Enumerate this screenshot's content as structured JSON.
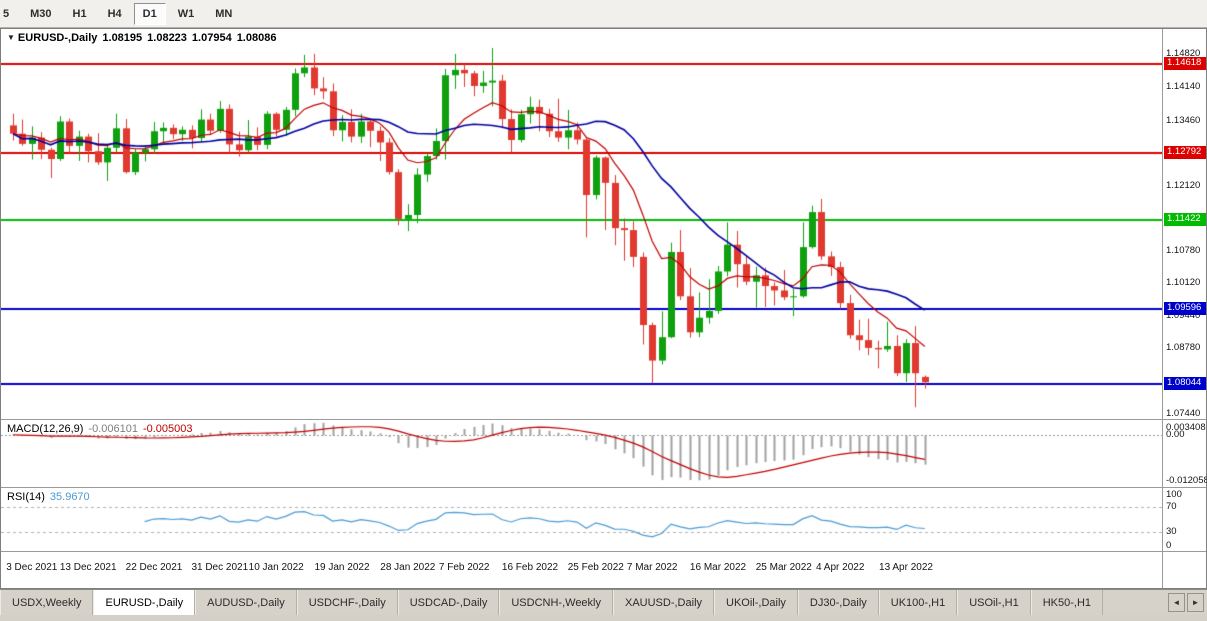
{
  "toolbar": {
    "timeframes": [
      "5",
      "M30",
      "H1",
      "H4",
      "D1",
      "W1",
      "MN"
    ],
    "active": "D1"
  },
  "icons": {
    "dropdown": "▼",
    "scroll_left": "◄",
    "scroll_right": "►"
  },
  "chart_data": {
    "type": "candlestick",
    "symbol_title": "EURUSD-,Daily",
    "ohlc_current": {
      "open": "1.08195",
      "high": "1.08223",
      "low": "1.07954",
      "close": "1.08086"
    },
    "ylim": [
      1.0733,
      1.1534
    ],
    "up_color": "#0fa00f",
    "down_color": "#e03a30",
    "price_ticks": [
      "1.14820",
      "1.14140",
      "1.13460",
      "1.12120",
      "1.10780",
      "1.10120",
      "1.09440",
      "1.08780",
      "1.07440"
    ],
    "levels": [
      {
        "price": 1.14618,
        "label": "1.14618",
        "color": "#dd0000"
      },
      {
        "price": 1.12792,
        "label": "1.12792",
        "color": "#dd0000"
      },
      {
        "price": 1.11422,
        "label": "1.11422",
        "color": "#00bb00"
      },
      {
        "price": 1.09596,
        "label": "1.09596",
        "color": "#0000cc"
      },
      {
        "price": 1.08044,
        "label": "1.08044",
        "color": "#0000cc"
      }
    ],
    "moving_averages": [
      {
        "name": "fast-ma",
        "period": 10,
        "method": "ema",
        "color": "#c00000",
        "width": 1.2
      },
      {
        "name": "slow-ma",
        "period": 20,
        "method": "sma",
        "color": "#0000a0",
        "width": 1.6
      }
    ],
    "x_labels": [
      {
        "label": "3 Dec 2021",
        "index": 2
      },
      {
        "label": "13 Dec 2021",
        "index": 8
      },
      {
        "label": "22 Dec 2021",
        "index": 15
      },
      {
        "label": "31 Dec 2021",
        "index": 22
      },
      {
        "label": "10 Jan 2022",
        "index": 28
      },
      {
        "label": "19 Jan 2022",
        "index": 35
      },
      {
        "label": "28 Jan 2022",
        "index": 42
      },
      {
        "label": "7 Feb 2022",
        "index": 48
      },
      {
        "label": "16 Feb 2022",
        "index": 55
      },
      {
        "label": "25 Feb 2022",
        "index": 62
      },
      {
        "label": "7 Mar 2022",
        "index": 68
      },
      {
        "label": "16 Mar 2022",
        "index": 75
      },
      {
        "label": "25 Mar 2022",
        "index": 82
      },
      {
        "label": "4 Apr 2022",
        "index": 88
      },
      {
        "label": "13 Apr 2022",
        "index": 95
      }
    ],
    "candles": [
      [
        1.1336,
        1.136,
        1.1305,
        1.1319
      ],
      [
        1.1319,
        1.1348,
        1.1294,
        1.1298
      ],
      [
        1.1298,
        1.1334,
        1.1266,
        1.1311
      ],
      [
        1.1311,
        1.1322,
        1.1267,
        1.1286
      ],
      [
        1.1286,
        1.129,
        1.1228,
        1.1267
      ],
      [
        1.1267,
        1.1355,
        1.1263,
        1.1344
      ],
      [
        1.1344,
        1.135,
        1.1279,
        1.1294
      ],
      [
        1.1294,
        1.1325,
        1.1263,
        1.1313
      ],
      [
        1.1313,
        1.1319,
        1.126,
        1.1283
      ],
      [
        1.1283,
        1.132,
        1.1255,
        1.126
      ],
      [
        1.126,
        1.1297,
        1.1222,
        1.129
      ],
      [
        1.129,
        1.136,
        1.128,
        1.133
      ],
      [
        1.133,
        1.1349,
        1.1237,
        1.124
      ],
      [
        1.124,
        1.1288,
        1.1234,
        1.128
      ],
      [
        1.128,
        1.1295,
        1.1262,
        1.1287
      ],
      [
        1.1287,
        1.1343,
        1.1278,
        1.1324
      ],
      [
        1.1324,
        1.1342,
        1.13,
        1.1331
      ],
      [
        1.1331,
        1.1338,
        1.1308,
        1.1318
      ],
      [
        1.1318,
        1.1334,
        1.1304,
        1.1327
      ],
      [
        1.1327,
        1.1336,
        1.1289,
        1.131
      ],
      [
        1.131,
        1.1369,
        1.1302,
        1.1348
      ],
      [
        1.1348,
        1.136,
        1.1316,
        1.1325
      ],
      [
        1.1325,
        1.1386,
        1.1321,
        1.137
      ],
      [
        1.137,
        1.1379,
        1.1279,
        1.1297
      ],
      [
        1.1297,
        1.1323,
        1.1272,
        1.1285
      ],
      [
        1.1285,
        1.1347,
        1.128,
        1.1313
      ],
      [
        1.1313,
        1.1332,
        1.1285,
        1.1296
      ],
      [
        1.1296,
        1.1365,
        1.1287,
        1.136
      ],
      [
        1.136,
        1.1363,
        1.1313,
        1.1327
      ],
      [
        1.1327,
        1.1374,
        1.1314,
        1.1368
      ],
      [
        1.1368,
        1.1453,
        1.1355,
        1.1443
      ],
      [
        1.1443,
        1.1481,
        1.1435,
        1.1455
      ],
      [
        1.1455,
        1.1483,
        1.1398,
        1.1412
      ],
      [
        1.1412,
        1.1435,
        1.139,
        1.1406
      ],
      [
        1.1406,
        1.1422,
        1.1314,
        1.1326
      ],
      [
        1.1326,
        1.1357,
        1.1303,
        1.1343
      ],
      [
        1.1343,
        1.1369,
        1.1301,
        1.1313
      ],
      [
        1.1313,
        1.136,
        1.13,
        1.1344
      ],
      [
        1.1344,
        1.1349,
        1.1291,
        1.1325
      ],
      [
        1.1325,
        1.1334,
        1.1263,
        1.1301
      ],
      [
        1.1301,
        1.131,
        1.1235,
        1.124
      ],
      [
        1.124,
        1.1246,
        1.1131,
        1.1144
      ],
      [
        1.1144,
        1.1174,
        1.1119,
        1.1152
      ],
      [
        1.1152,
        1.1248,
        1.1135,
        1.1235
      ],
      [
        1.1235,
        1.1279,
        1.122,
        1.1273
      ],
      [
        1.1273,
        1.133,
        1.1266,
        1.1304
      ],
      [
        1.1304,
        1.1452,
        1.1266,
        1.1439
      ],
      [
        1.1439,
        1.1483,
        1.1411,
        1.145
      ],
      [
        1.145,
        1.1462,
        1.1415,
        1.1443
      ],
      [
        1.1443,
        1.1448,
        1.1396,
        1.1417
      ],
      [
        1.1417,
        1.1448,
        1.1403,
        1.1424
      ],
      [
        1.1424,
        1.1495,
        1.1375,
        1.1428
      ],
      [
        1.1428,
        1.144,
        1.133,
        1.1349
      ],
      [
        1.1349,
        1.1369,
        1.128,
        1.1306
      ],
      [
        1.1306,
        1.1368,
        1.1301,
        1.1359
      ],
      [
        1.1359,
        1.1395,
        1.134,
        1.1374
      ],
      [
        1.1374,
        1.1389,
        1.1324,
        1.136
      ],
      [
        1.136,
        1.137,
        1.1312,
        1.1324
      ],
      [
        1.1324,
        1.1391,
        1.1302,
        1.1311
      ],
      [
        1.1311,
        1.1368,
        1.1287,
        1.1326
      ],
      [
        1.1326,
        1.1342,
        1.1297,
        1.1307
      ],
      [
        1.1307,
        1.131,
        1.1106,
        1.1193
      ],
      [
        1.1193,
        1.1274,
        1.1184,
        1.127
      ],
      [
        1.127,
        1.1272,
        1.1121,
        1.1218
      ],
      [
        1.1218,
        1.1234,
        1.109,
        1.1125
      ],
      [
        1.1125,
        1.1145,
        1.1058,
        1.1121
      ],
      [
        1.1121,
        1.1139,
        1.1045,
        1.1066
      ],
      [
        1.1066,
        1.1075,
        1.0886,
        1.0926
      ],
      [
        1.0926,
        1.0931,
        1.0806,
        1.0853
      ],
      [
        1.0853,
        1.0954,
        1.0845,
        1.0901
      ],
      [
        1.0901,
        1.1095,
        1.0899,
        1.1076
      ],
      [
        1.1076,
        1.1121,
        1.0977,
        1.0985
      ],
      [
        1.0985,
        1.1043,
        1.09,
        1.0911
      ],
      [
        1.0911,
        1.0993,
        1.0901,
        1.0941
      ],
      [
        1.0941,
        1.102,
        1.0929,
        1.0955
      ],
      [
        1.0955,
        1.1047,
        1.0949,
        1.1036
      ],
      [
        1.1036,
        1.1137,
        1.1026,
        1.1091
      ],
      [
        1.1091,
        1.1119,
        1.1003,
        1.1051
      ],
      [
        1.1051,
        1.1069,
        1.1008,
        1.1015
      ],
      [
        1.1015,
        1.1046,
        1.0962,
        1.1028
      ],
      [
        1.1028,
        1.1044,
        1.0963,
        1.1006
      ],
      [
        1.1006,
        1.1014,
        1.0966,
        1.0997
      ],
      [
        1.0997,
        1.1039,
        1.0977,
        1.0983
      ],
      [
        1.0983,
        1.1,
        1.0944,
        1.0985
      ],
      [
        1.0985,
        1.1137,
        1.0982,
        1.1086
      ],
      [
        1.1086,
        1.1171,
        1.1083,
        1.1158
      ],
      [
        1.1158,
        1.1185,
        1.106,
        1.1067
      ],
      [
        1.1067,
        1.1077,
        1.1027,
        1.1045
      ],
      [
        1.1045,
        1.1056,
        1.0959,
        1.0971
      ],
      [
        1.0971,
        1.0988,
        1.0898,
        1.0905
      ],
      [
        1.0905,
        1.0937,
        1.0874,
        1.0895
      ],
      [
        1.0895,
        1.0939,
        1.0864,
        1.0879
      ],
      [
        1.0879,
        1.0894,
        1.0837,
        1.0876
      ],
      [
        1.0876,
        1.0933,
        1.0871,
        1.0883
      ],
      [
        1.0883,
        1.0905,
        1.0821,
        1.0827
      ],
      [
        1.0827,
        1.0897,
        1.0809,
        1.0889
      ],
      [
        1.0889,
        1.0924,
        1.0757,
        1.0827
      ],
      [
        1.08195,
        1.08223,
        1.07954,
        1.08086
      ]
    ],
    "macd": {
      "label": "MACD(12,26,9)",
      "fast": 12,
      "slow": 26,
      "signal": 9,
      "value": "-0.006101",
      "signal_value": "-0.005003",
      "scale_max": "0.003408",
      "scale_zero": "0.00",
      "scale_min": "-0.012058",
      "hist_color": "#a0a0a0",
      "signal_color": "#c00000"
    },
    "rsi": {
      "label": "RSI(14)",
      "period": 14,
      "value": "35.9670",
      "levels": [
        "100",
        "70",
        "30",
        "0"
      ],
      "upper": 70,
      "lower": 30,
      "color": "#4a9ad4"
    }
  },
  "tabs": {
    "items": [
      {
        "label": "USDX,Weekly",
        "active": false
      },
      {
        "label": "EURUSD-,Daily",
        "active": true
      },
      {
        "label": "AUDUSD-,Daily",
        "active": false
      },
      {
        "label": "USDCHF-,Daily",
        "active": false
      },
      {
        "label": "USDCAD-,Daily",
        "active": false
      },
      {
        "label": "USDCNH-,Weekly",
        "active": false
      },
      {
        "label": "XAUUSD-,Daily",
        "active": false
      },
      {
        "label": "UKOil-,Daily",
        "active": false
      },
      {
        "label": "DJ30-,Daily",
        "active": false
      },
      {
        "label": "UK100-,H1",
        "active": false
      },
      {
        "label": "USOil-,H1",
        "active": false
      },
      {
        "label": "HK50-,H1",
        "active": false
      }
    ]
  }
}
